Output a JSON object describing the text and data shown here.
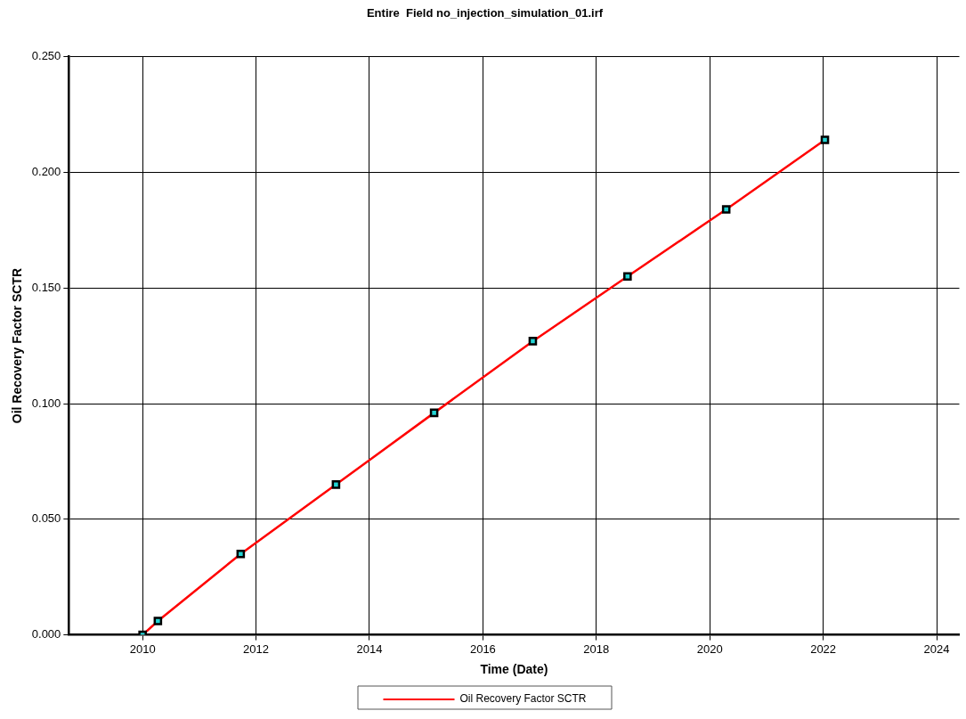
{
  "chart_data": {
    "type": "line",
    "title": "Entire  Field no_injection_simulation_01.irf",
    "xlabel": "Time (Date)",
    "ylabel": "Oil Recovery Factor SCTR",
    "x": [
      2010,
      2010.27,
      2011.73,
      2013.41,
      2015.14,
      2016.88,
      2018.55,
      2020.29,
      2022.03
    ],
    "series": [
      {
        "name": "Oil Recovery Factor SCTR",
        "color": "#ff0000",
        "values": [
          0,
          0.006,
          0.035,
          0.065,
          0.096,
          0.127,
          0.155,
          0.184,
          0.214
        ]
      }
    ],
    "xlim": [
      2008.7,
      2024.4
    ],
    "xticks": [
      2010,
      2012,
      2014,
      2016,
      2018,
      2020,
      2022,
      2024
    ],
    "ylim": [
      0,
      0.25
    ],
    "yticks": [
      {
        "value": 0,
        "label": "0.000"
      },
      {
        "value": 0.05,
        "label": "0.050"
      },
      {
        "value": 0.1,
        "label": "0.100"
      },
      {
        "value": 0.15,
        "label": "0.150"
      },
      {
        "value": 0.2,
        "label": "0.200"
      },
      {
        "value": 0.25,
        "label": "0.250"
      }
    ],
    "grid": true,
    "legend": "bottom",
    "marker": "square",
    "line_style": "solid"
  }
}
